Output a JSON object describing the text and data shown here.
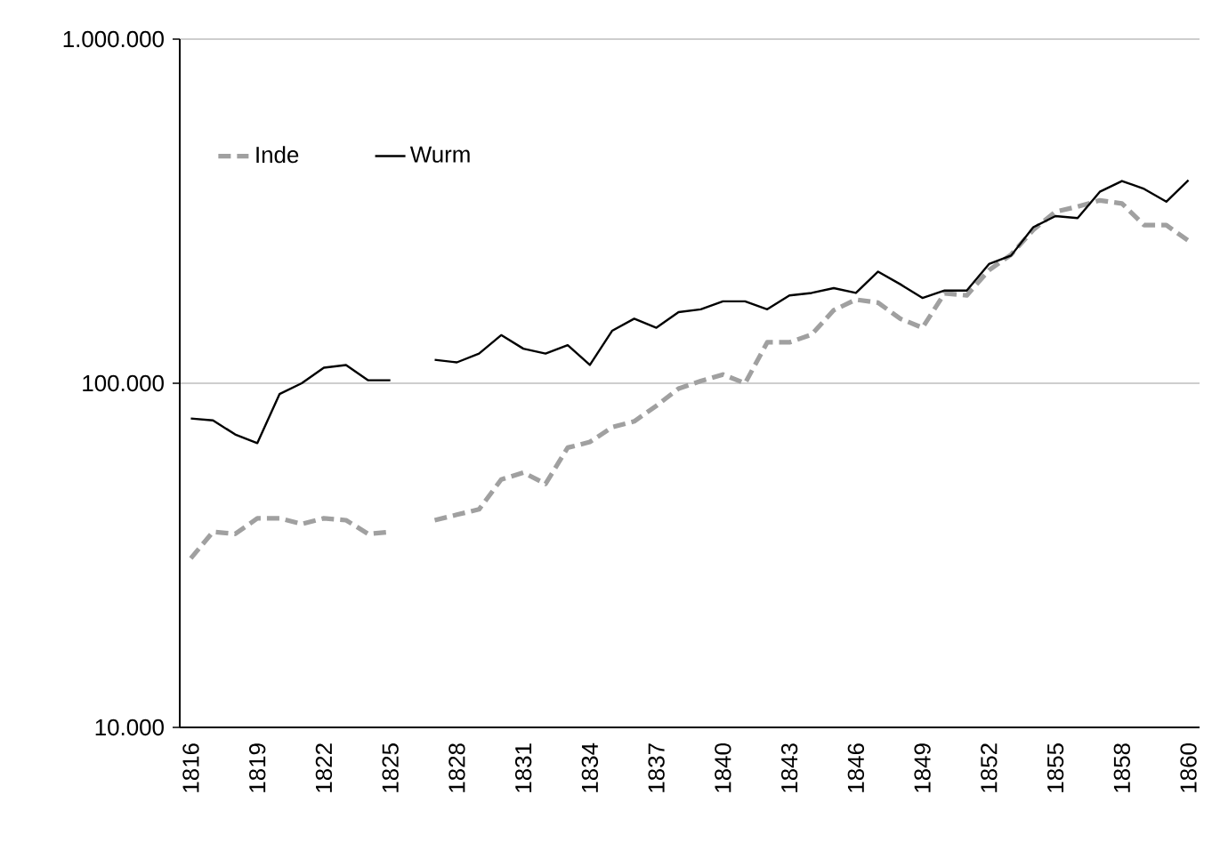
{
  "chart_data": {
    "type": "line",
    "categories": [
      "1816",
      null,
      null,
      "1819",
      null,
      null,
      "1822",
      null,
      null,
      "1825",
      null,
      null,
      "1828",
      null,
      null,
      "1831",
      null,
      null,
      "1834",
      null,
      null,
      "1837",
      null,
      null,
      "1840",
      null,
      null,
      "1843",
      null,
      null,
      "1846",
      null,
      null,
      "1849",
      null,
      null,
      "1852",
      null,
      null,
      "1855",
      null,
      null,
      "1858",
      null,
      null,
      "1860"
    ],
    "series": [
      {
        "name": "Inde",
        "color": "#a0a0a0",
        "line_style": "dashed",
        "values": [
          31000,
          37000,
          36500,
          40500,
          40500,
          39000,
          40500,
          40000,
          36500,
          37000,
          null,
          40000,
          41500,
          43000,
          52500,
          55000,
          51000,
          65000,
          67500,
          74500,
          77500,
          86000,
          96500,
          101500,
          106000,
          100000,
          131500,
          131500,
          138500,
          163000,
          175000,
          171500,
          154000,
          145000,
          182500,
          180000,
          213000,
          236500,
          279000,
          315000,
          326000,
          340000,
          333000,
          288000,
          288000,
          259500
        ]
      },
      {
        "name": "Wurm",
        "color": "#000000",
        "line_style": "solid",
        "values": [
          79000,
          78000,
          71000,
          67000,
          93000,
          100000,
          111000,
          113000,
          102000,
          102000,
          null,
          117000,
          115000,
          122000,
          138000,
          126000,
          122000,
          129000,
          113000,
          142000,
          154000,
          145000,
          161000,
          164000,
          173000,
          173000,
          164000,
          180000,
          183000,
          189000,
          183000,
          211000,
          194000,
          177000,
          186000,
          186000,
          222000,
          235000,
          284000,
          306000,
          302000,
          360000,
          387000,
          367000,
          337000,
          389000
        ]
      }
    ],
    "ylim": [
      10000,
      1000000
    ],
    "yticks": [
      {
        "value": 10000,
        "label": "10.000"
      },
      {
        "value": 100000,
        "label": "100.000"
      },
      {
        "value": 1000000,
        "label": "1.000.000"
      }
    ],
    "log": "y",
    "grid": "y",
    "legend": "top left"
  }
}
